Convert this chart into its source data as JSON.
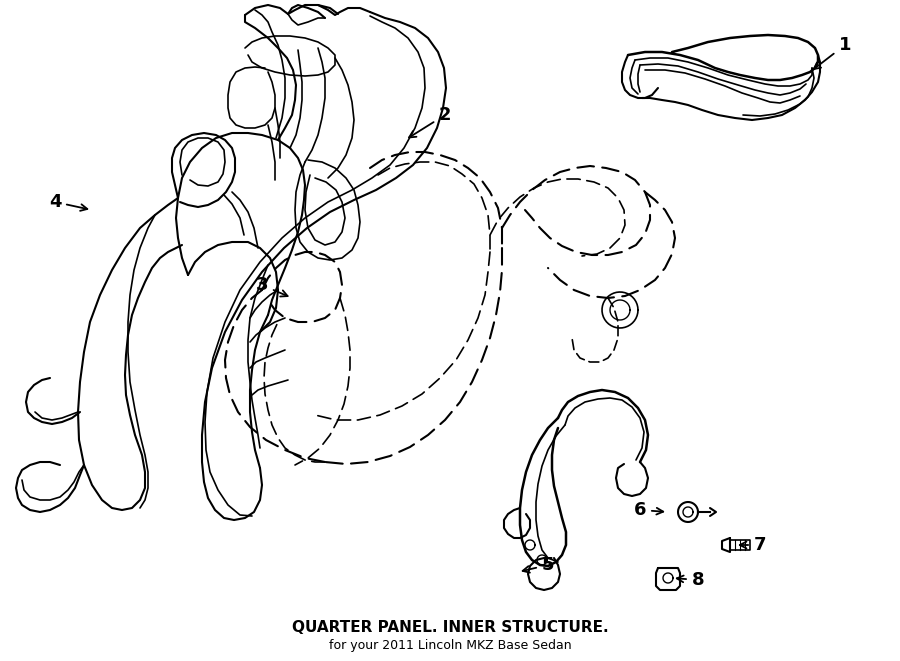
{
  "title": "QUARTER PANEL. INNER STRUCTURE.",
  "subtitle": "for your 2011 Lincoln MKZ Base Sedan",
  "bg": "#ffffff",
  "lc": "#000000",
  "label_fs": 13,
  "title_fs": 11,
  "sub_fs": 9
}
